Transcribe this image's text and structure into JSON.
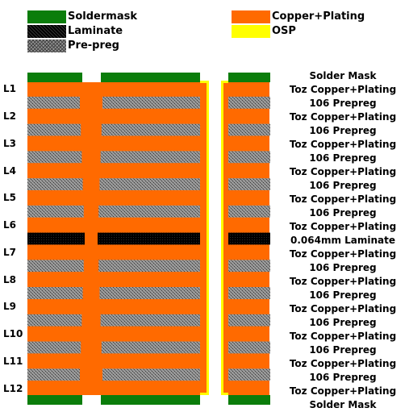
{
  "legend": [
    {
      "label": "Soldermask",
      "pattern": "soldermask"
    },
    {
      "label": "Laminate",
      "pattern": "laminate"
    },
    {
      "label": "Pre-preg",
      "pattern": "prepreg"
    },
    {
      "label": "Copper+Plating",
      "pattern": "copper"
    },
    {
      "label": "OSP",
      "pattern": "osp"
    }
  ],
  "layers": [
    "L1",
    "L2",
    "L3",
    "L4",
    "L5",
    "L6",
    "L7",
    "L8",
    "L9",
    "L10",
    "L11",
    "L12"
  ],
  "stack_labels": [
    "Solder Mask",
    "Toz Copper+Plating",
    "106 Prepreg",
    "Toz Copper+Plating",
    "106 Prepreg",
    "Toz Copper+Plating",
    "106 Prepreg",
    "Toz Copper+Plating",
    "106 Prepreg",
    "Toz Copper+Plating",
    "106 Prepreg",
    "Toz Copper+Plating",
    "0.064mm Laminate",
    "Toz Copper+Plating",
    "106 Prepreg",
    "Toz Copper+Plating",
    "106 Prepreg",
    "Toz Copper+Plating",
    "106 Prepreg",
    "Toz Copper+Plating",
    "106 Prepreg",
    "Toz Copper+Plating",
    "106 Prepreg",
    "Toz Copper+Plating",
    "Solder Mask"
  ],
  "colors": {
    "soldermask": "#0b7d0b",
    "copper": "#ff6a00",
    "osp": "#ffff00",
    "laminate": "#000000",
    "prepreg_dark": "#444444",
    "prepreg_light": "#9a9a9a"
  }
}
